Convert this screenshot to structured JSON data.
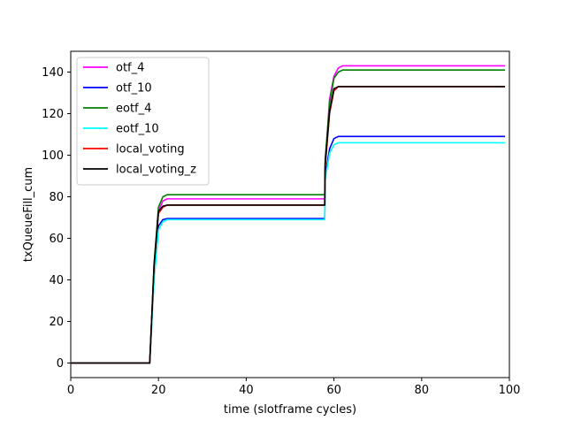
{
  "chart_data": {
    "type": "line",
    "title": "",
    "xlabel": "time (slotframe cycles)",
    "ylabel": "txQueueFill_cum",
    "xlim": [
      0,
      100
    ],
    "ylim": [
      -7,
      150
    ],
    "xticks": [
      0,
      20,
      40,
      60,
      80,
      100
    ],
    "yticks": [
      0,
      20,
      40,
      60,
      80,
      100,
      120,
      140
    ],
    "grid": false,
    "legend_position": "top-left",
    "series": [
      {
        "name": "otf_4",
        "color": "#ff00ff",
        "points": [
          [
            0,
            0
          ],
          [
            18,
            0
          ],
          [
            19,
            45
          ],
          [
            20,
            73
          ],
          [
            21,
            78
          ],
          [
            22,
            79
          ],
          [
            57.9,
            79
          ],
          [
            58,
            95
          ],
          [
            59,
            127
          ],
          [
            60,
            138
          ],
          [
            61,
            142
          ],
          [
            62,
            143
          ],
          [
            99,
            143
          ]
        ]
      },
      {
        "name": "otf_10",
        "color": "#0000ff",
        "points": [
          [
            0,
            0
          ],
          [
            18,
            0
          ],
          [
            19,
            42
          ],
          [
            20,
            66
          ],
          [
            21,
            69
          ],
          [
            22,
            69.5
          ],
          [
            57.9,
            69.5
          ],
          [
            58,
            90
          ],
          [
            59,
            103
          ],
          [
            60,
            108
          ],
          [
            61,
            109
          ],
          [
            99,
            109
          ]
        ]
      },
      {
        "name": "eotf_4",
        "color": "#008000",
        "points": [
          [
            0,
            0
          ],
          [
            18,
            0
          ],
          [
            19,
            48
          ],
          [
            20,
            75
          ],
          [
            21,
            80
          ],
          [
            22,
            81
          ],
          [
            57.9,
            81
          ],
          [
            58,
            98
          ],
          [
            59,
            125
          ],
          [
            60,
            137
          ],
          [
            61,
            140
          ],
          [
            62,
            141
          ],
          [
            99,
            141
          ]
        ]
      },
      {
        "name": "eotf_10",
        "color": "#00ffff",
        "points": [
          [
            0,
            0
          ],
          [
            18,
            0
          ],
          [
            19,
            40
          ],
          [
            20,
            64
          ],
          [
            21,
            68
          ],
          [
            22,
            69
          ],
          [
            57.9,
            69
          ],
          [
            58,
            88
          ],
          [
            59,
            101
          ],
          [
            60,
            105
          ],
          [
            61,
            106
          ],
          [
            99,
            106
          ]
        ]
      },
      {
        "name": "local_voting",
        "color": "#ff0000",
        "points": [
          [
            0,
            0
          ],
          [
            18,
            0
          ],
          [
            19,
            47
          ],
          [
            20,
            72
          ],
          [
            21,
            75
          ],
          [
            22,
            76
          ],
          [
            57.9,
            76
          ],
          [
            58,
            94
          ],
          [
            59,
            120
          ],
          [
            60,
            131
          ],
          [
            61,
            133
          ],
          [
            99,
            133
          ]
        ]
      },
      {
        "name": "local_voting_z",
        "color": "#000000",
        "points": [
          [
            0,
            0
          ],
          [
            18,
            0
          ],
          [
            19,
            47
          ],
          [
            20,
            73
          ],
          [
            21,
            75.5
          ],
          [
            22,
            76
          ],
          [
            57.9,
            76
          ],
          [
            58,
            96
          ],
          [
            59,
            121
          ],
          [
            60,
            132
          ],
          [
            61,
            133
          ],
          [
            99,
            133
          ]
        ]
      }
    ]
  }
}
